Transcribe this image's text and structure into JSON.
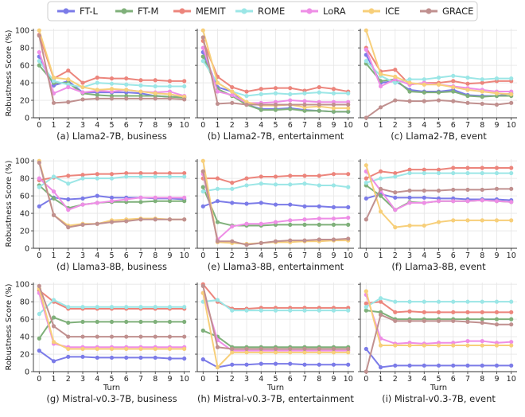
{
  "legend": [
    {
      "name": "FT-L",
      "color": "#7b7be8"
    },
    {
      "name": "FT-M",
      "color": "#7fb07a"
    },
    {
      "name": "MEMIT",
      "color": "#ec857c"
    },
    {
      "name": "ROME",
      "color": "#9be6e6"
    },
    {
      "name": "LoRA",
      "color": "#ee8ee6"
    },
    {
      "name": "ICE",
      "color": "#f7cf7a"
    },
    {
      "name": "GRACE",
      "color": "#c0908f"
    }
  ],
  "axes": {
    "ylabel": "Robustness Score (%)",
    "xlabel": "Turn",
    "xticks": [
      0,
      1,
      2,
      3,
      4,
      5,
      6,
      7,
      8,
      9,
      10
    ],
    "yticks": [
      0,
      20,
      40,
      60,
      80,
      100
    ],
    "ylim": [
      0,
      102
    ],
    "xlim": [
      -0.4,
      10.4
    ]
  },
  "chart_data": [
    {
      "type": "line",
      "title": "(a) Llama2-7B, business",
      "x": [
        0,
        1,
        2,
        3,
        4,
        5,
        6,
        7,
        8,
        9,
        10
      ],
      "series": [
        {
          "name": "FT-L",
          "values": [
            70,
            37,
            42,
            29,
            29,
            29,
            29,
            28,
            25,
            24,
            24
          ]
        },
        {
          "name": "FT-M",
          "values": [
            60,
            40,
            40,
            28,
            26,
            25,
            25,
            25,
            25,
            24,
            23
          ]
        },
        {
          "name": "MEMIT",
          "values": [
            95,
            45,
            54,
            40,
            46,
            45,
            45,
            43,
            43,
            42,
            42
          ]
        },
        {
          "name": "ROME",
          "values": [
            65,
            42,
            38,
            35,
            40,
            39,
            38,
            37,
            36,
            36,
            36
          ]
        },
        {
          "name": "LoRA",
          "values": [
            75,
            28,
            35,
            29,
            31,
            30,
            32,
            30,
            29,
            30,
            25
          ]
        },
        {
          "name": "ICE",
          "values": [
            100,
            46,
            44,
            35,
            32,
            33,
            32,
            30,
            28,
            27,
            24
          ]
        },
        {
          "name": "GRACE",
          "values": [
            94,
            17,
            18,
            21,
            22,
            22,
            22,
            22,
            22,
            22,
            21
          ]
        }
      ]
    },
    {
      "type": "line",
      "title": "(b) Llama2-7B, entertainment",
      "x": [
        0,
        1,
        2,
        3,
        4,
        5,
        6,
        7,
        8,
        9,
        10
      ],
      "series": [
        {
          "name": "FT-L",
          "values": [
            75,
            35,
            30,
            15,
            10,
            10,
            11,
            9,
            8,
            7,
            7
          ]
        },
        {
          "name": "FT-M",
          "values": [
            70,
            33,
            25,
            15,
            9,
            9,
            10,
            8,
            8,
            7,
            7
          ]
        },
        {
          "name": "MEMIT",
          "values": [
            88,
            47,
            35,
            30,
            33,
            34,
            34,
            31,
            35,
            33,
            30
          ]
        },
        {
          "name": "ROME",
          "values": [
            65,
            40,
            30,
            25,
            27,
            28,
            27,
            28,
            29,
            28,
            28
          ]
        },
        {
          "name": "LoRA",
          "values": [
            80,
            30,
            26,
            17,
            17,
            18,
            20,
            19,
            18,
            18,
            18
          ]
        },
        {
          "name": "ICE",
          "values": [
            100,
            40,
            30,
            18,
            14,
            14,
            15,
            12,
            13,
            11,
            11
          ]
        },
        {
          "name": "GRACE",
          "values": [
            92,
            16,
            17,
            15,
            15,
            15,
            15,
            15,
            15,
            15,
            15
          ]
        }
      ]
    },
    {
      "type": "line",
      "title": "(c) Llama2-7B, event",
      "x": [
        0,
        1,
        2,
        3,
        4,
        5,
        6,
        7,
        8,
        9,
        10
      ],
      "series": [
        {
          "name": "FT-L",
          "values": [
            72,
            40,
            42,
            32,
            30,
            30,
            32,
            26,
            25,
            25,
            28
          ]
        },
        {
          "name": "FT-M",
          "values": [
            62,
            42,
            44,
            30,
            29,
            29,
            30,
            25,
            24,
            25,
            25
          ]
        },
        {
          "name": "MEMIT",
          "values": [
            80,
            53,
            55,
            38,
            40,
            40,
            42,
            39,
            40,
            42,
            42
          ]
        },
        {
          "name": "ROME",
          "values": [
            65,
            48,
            40,
            44,
            44,
            46,
            48,
            46,
            44,
            45,
            45
          ]
        },
        {
          "name": "LoRA",
          "values": [
            78,
            36,
            44,
            38,
            40,
            38,
            36,
            34,
            32,
            30,
            30
          ]
        },
        {
          "name": "ICE",
          "values": [
            100,
            50,
            47,
            40,
            38,
            38,
            35,
            32,
            30,
            28,
            27
          ]
        },
        {
          "name": "GRACE",
          "values": [
            0,
            12,
            20,
            19,
            19,
            20,
            19,
            17,
            16,
            15,
            17
          ]
        }
      ]
    },
    {
      "type": "line",
      "title": "(d) Llama3-8B, business",
      "x": [
        0,
        1,
        2,
        3,
        4,
        5,
        6,
        7,
        8,
        9,
        10
      ],
      "series": [
        {
          "name": "FT-L",
          "values": [
            48,
            58,
            56,
            57,
            60,
            58,
            58,
            58,
            57,
            57,
            56
          ]
        },
        {
          "name": "FT-M",
          "values": [
            72,
            57,
            46,
            50,
            52,
            53,
            53,
            53,
            54,
            54,
            54
          ]
        },
        {
          "name": "MEMIT",
          "values": [
            78,
            81,
            83,
            84,
            85,
            85,
            86,
            86,
            86,
            86,
            86
          ]
        },
        {
          "name": "ROME",
          "values": [
            70,
            82,
            74,
            80,
            80,
            80,
            82,
            82,
            82,
            82,
            82
          ]
        },
        {
          "name": "LoRA",
          "values": [
            80,
            65,
            44,
            50,
            52,
            54,
            56,
            58,
            58,
            58,
            58
          ]
        },
        {
          "name": "ICE",
          "values": [
            100,
            38,
            26,
            28,
            28,
            32,
            33,
            34,
            34,
            33,
            33
          ]
        },
        {
          "name": "GRACE",
          "values": [
            98,
            38,
            24,
            27,
            28,
            30,
            31,
            33,
            33,
            33,
            33
          ]
        }
      ]
    },
    {
      "type": "line",
      "title": "(e) Llama3-8B, entertainment",
      "x": [
        0,
        1,
        2,
        3,
        4,
        5,
        6,
        7,
        8,
        9,
        10
      ],
      "series": [
        {
          "name": "FT-L",
          "values": [
            48,
            54,
            52,
            51,
            52,
            50,
            50,
            48,
            48,
            47,
            47
          ]
        },
        {
          "name": "FT-M",
          "values": [
            70,
            30,
            26,
            26,
            26,
            27,
            27,
            27,
            27,
            27,
            27
          ]
        },
        {
          "name": "MEMIT",
          "values": [
            80,
            80,
            75,
            80,
            82,
            82,
            83,
            83,
            83,
            85,
            85
          ]
        },
        {
          "name": "ROME",
          "values": [
            65,
            68,
            68,
            72,
            74,
            73,
            73,
            74,
            72,
            72,
            70
          ]
        },
        {
          "name": "LoRA",
          "values": [
            85,
            10,
            25,
            28,
            28,
            30,
            32,
            33,
            34,
            34,
            35
          ]
        },
        {
          "name": "ICE",
          "values": [
            100,
            7,
            6,
            5,
            6,
            7,
            7,
            8,
            8,
            9,
            9
          ]
        },
        {
          "name": "GRACE",
          "values": [
            88,
            8,
            8,
            4,
            6,
            8,
            9,
            9,
            10,
            10,
            11
          ]
        }
      ]
    },
    {
      "type": "line",
      "title": "(f) Llama3-8B, event",
      "x": [
        0,
        1,
        2,
        3,
        4,
        5,
        6,
        7,
        8,
        9,
        10
      ],
      "series": [
        {
          "name": "FT-L",
          "values": [
            57,
            62,
            58,
            58,
            58,
            57,
            57,
            56,
            56,
            56,
            55
          ]
        },
        {
          "name": "FT-M",
          "values": [
            72,
            60,
            44,
            53,
            52,
            54,
            54,
            54,
            55,
            54,
            53
          ]
        },
        {
          "name": "MEMIT",
          "values": [
            80,
            88,
            86,
            90,
            90,
            90,
            92,
            92,
            92,
            92,
            92
          ]
        },
        {
          "name": "ROME",
          "values": [
            75,
            80,
            82,
            86,
            86,
            86,
            86,
            86,
            86,
            86,
            86
          ]
        },
        {
          "name": "LoRA",
          "values": [
            88,
            66,
            44,
            52,
            52,
            54,
            54,
            54,
            55,
            54,
            53
          ]
        },
        {
          "name": "ICE",
          "values": [
            95,
            42,
            24,
            26,
            26,
            30,
            32,
            32,
            32,
            32,
            32
          ]
        },
        {
          "name": "GRACE",
          "values": [
            33,
            68,
            64,
            66,
            66,
            66,
            67,
            67,
            67,
            68,
            68
          ]
        }
      ]
    },
    {
      "type": "line",
      "title": "(g) Mistral-v0.3-7B, business",
      "x": [
        0,
        1,
        2,
        3,
        4,
        5,
        6,
        7,
        8,
        9,
        10
      ],
      "series": [
        {
          "name": "FT-L",
          "values": [
            24,
            12,
            17,
            17,
            16,
            16,
            16,
            16,
            16,
            15,
            15
          ]
        },
        {
          "name": "FT-M",
          "values": [
            38,
            62,
            56,
            57,
            57,
            57,
            57,
            57,
            57,
            57,
            57
          ]
        },
        {
          "name": "MEMIT",
          "values": [
            93,
            80,
            72,
            72,
            72,
            72,
            72,
            72,
            72,
            72,
            72
          ]
        },
        {
          "name": "ROME",
          "values": [
            66,
            82,
            74,
            74,
            74,
            74,
            74,
            74,
            74,
            74,
            74
          ]
        },
        {
          "name": "LoRA",
          "values": [
            90,
            32,
            28,
            28,
            28,
            28,
            28,
            28,
            28,
            28,
            28
          ]
        },
        {
          "name": "ICE",
          "values": [
            95,
            34,
            26,
            26,
            26,
            26,
            26,
            26,
            26,
            26,
            26
          ]
        },
        {
          "name": "GRACE",
          "values": [
            98,
            52,
            40,
            40,
            40,
            40,
            40,
            40,
            40,
            40,
            40
          ]
        }
      ]
    },
    {
      "type": "line",
      "title": "(h) Mistral-v0.3-7B, entertainment",
      "x": [
        0,
        1,
        2,
        3,
        4,
        5,
        6,
        7,
        8,
        9,
        10
      ],
      "series": [
        {
          "name": "FT-L",
          "values": [
            14,
            5,
            8,
            8,
            9,
            9,
            9,
            8,
            8,
            8,
            8
          ]
        },
        {
          "name": "FT-M",
          "values": [
            47,
            40,
            28,
            28,
            28,
            28,
            28,
            28,
            28,
            28,
            28
          ]
        },
        {
          "name": "MEMIT",
          "values": [
            100,
            80,
            72,
            72,
            73,
            73,
            73,
            73,
            73,
            73,
            73
          ]
        },
        {
          "name": "ROME",
          "values": [
            80,
            82,
            70,
            70,
            70,
            70,
            70,
            70,
            70,
            70,
            70
          ]
        },
        {
          "name": "LoRA",
          "values": [
            90,
            36,
            24,
            24,
            24,
            24,
            24,
            24,
            24,
            24,
            24
          ]
        },
        {
          "name": "ICE",
          "values": [
            90,
            5,
            22,
            22,
            22,
            22,
            22,
            22,
            22,
            22,
            22
          ]
        },
        {
          "name": "GRACE",
          "values": [
            98,
            28,
            26,
            26,
            26,
            26,
            26,
            26,
            26,
            26,
            26
          ]
        }
      ]
    },
    {
      "type": "line",
      "title": "(i) Mistral-v0.3-7B, event",
      "x": [
        0,
        1,
        2,
        3,
        4,
        5,
        6,
        7,
        8,
        9,
        10
      ],
      "series": [
        {
          "name": "FT-L",
          "values": [
            26,
            5,
            7,
            7,
            7,
            7,
            7,
            7,
            7,
            7,
            7
          ]
        },
        {
          "name": "FT-M",
          "values": [
            70,
            68,
            60,
            60,
            60,
            60,
            60,
            60,
            60,
            60,
            60
          ]
        },
        {
          "name": "MEMIT",
          "values": [
            78,
            80,
            68,
            69,
            68,
            68,
            68,
            68,
            68,
            68,
            68
          ]
        },
        {
          "name": "ROME",
          "values": [
            74,
            84,
            80,
            80,
            80,
            80,
            80,
            80,
            80,
            80,
            80
          ]
        },
        {
          "name": "LoRA",
          "values": [
            88,
            38,
            32,
            33,
            32,
            33,
            33,
            35,
            35,
            33,
            34
          ]
        },
        {
          "name": "ICE",
          "values": [
            92,
            30,
            30,
            30,
            30,
            30,
            30,
            30,
            30,
            30,
            30
          ]
        },
        {
          "name": "GRACE",
          "values": [
            0,
            65,
            58,
            58,
            58,
            58,
            58,
            57,
            56,
            54,
            54
          ]
        }
      ]
    }
  ]
}
